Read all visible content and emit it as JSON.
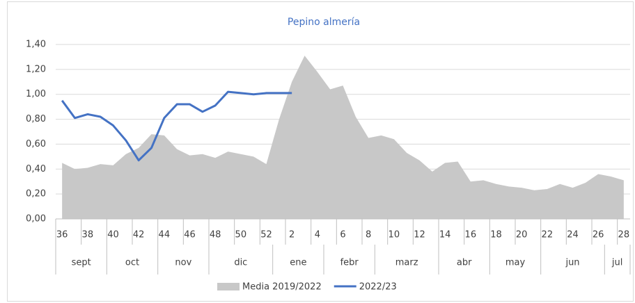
{
  "chart_data": {
    "type": "area-line",
    "title": "Pepino almería",
    "categories": [
      36,
      null,
      38,
      null,
      40,
      null,
      42,
      null,
      44,
      null,
      46,
      null,
      48,
      null,
      50,
      null,
      52,
      null,
      2,
      null,
      4,
      null,
      6,
      null,
      8,
      null,
      10,
      null,
      12,
      null,
      14,
      null,
      16,
      null,
      18,
      null,
      20,
      null,
      22,
      null,
      24,
      null,
      26,
      null,
      28
    ],
    "months": [
      "sept",
      "oct",
      "nov",
      "dic",
      "ene",
      "febr",
      "marz",
      "abr",
      "may",
      "jun",
      "jul"
    ],
    "month_spans": [
      4,
      4,
      4,
      5,
      4,
      4,
      5,
      4,
      4,
      5,
      2
    ],
    "series": [
      {
        "name": "Media 2019/2022",
        "kind": "area",
        "color": "#c8c8c8",
        "values": [
          0.45,
          0.4,
          0.41,
          0.44,
          0.43,
          0.52,
          0.57,
          0.68,
          0.67,
          0.56,
          0.51,
          0.52,
          0.49,
          0.54,
          0.52,
          0.5,
          0.44,
          0.8,
          1.1,
          1.31,
          1.18,
          1.04,
          1.07,
          0.82,
          0.65,
          0.67,
          0.64,
          0.53,
          0.47,
          0.38,
          0.45,
          0.46,
          0.3,
          0.31,
          0.28,
          0.26,
          0.25,
          0.23,
          0.24,
          0.28,
          0.25,
          0.29,
          0.36,
          0.34,
          0.31
        ]
      },
      {
        "name": "2022/23",
        "kind": "line",
        "color": "#4472c4",
        "values": [
          0.95,
          0.81,
          0.84,
          0.82,
          0.75,
          0.63,
          0.47,
          0.57,
          0.81,
          0.92,
          0.92,
          0.86,
          0.91,
          1.02,
          1.01,
          1.0,
          1.01,
          1.01,
          1.01,
          null,
          null,
          null,
          null,
          null,
          null,
          null,
          null,
          null,
          null,
          null,
          null,
          null,
          null,
          null,
          null,
          null,
          null,
          null,
          null,
          null,
          null,
          null,
          null,
          null,
          null
        ]
      }
    ],
    "ylim": [
      0,
      1.4
    ],
    "yticks": [
      {
        "value": 0,
        "label": "0,00"
      },
      {
        "value": 0.2,
        "label": "0,20"
      },
      {
        "value": 0.4,
        "label": "0,40"
      },
      {
        "value": 0.6,
        "label": "0,60"
      },
      {
        "value": 0.8,
        "label": "0,80"
      },
      {
        "value": 1.0,
        "label": "1,00"
      },
      {
        "value": 1.2,
        "label": "1,20"
      },
      {
        "value": 1.4,
        "label": "1,40"
      }
    ],
    "grid": true,
    "legend": "bottom"
  }
}
